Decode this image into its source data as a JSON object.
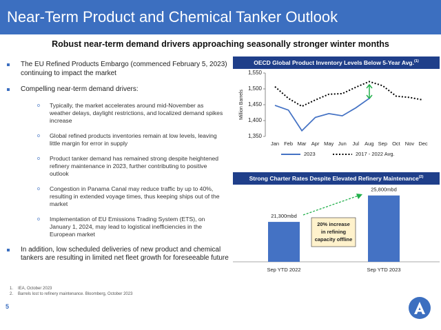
{
  "header": {
    "title": "Near-Term Product and Chemical Tanker Outlook"
  },
  "subtitle": "Robust near-term demand drivers approaching seasonally stronger winter months",
  "bullets": [
    {
      "text": "The EU Refined Products Embargo (commenced February 5, 2023) continuing to impact the market",
      "sub": []
    },
    {
      "text": "Compelling near-term demand drivers:",
      "sub": [
        "Typically, the market accelerates around mid-November as weather delays, daylight restrictions, and localized demand spikes increase",
        "Global refined products inventories remain at low levels, leaving little margin for error in supply",
        "Product tanker demand has remained strong despite heightened refinery maintenance in 2023, further contributing to positive outlook",
        "Congestion in Panama Canal may reduce traffic by up to 40%, resulting in extended voyage times, thus keeping ships out of the market",
        "Implementation of EU Emissions Trading System (ETS), on January 1, 2024, may lead to logistical inefficiencies in the European market"
      ]
    },
    {
      "text": "In addition, low scheduled deliveries of new product and chemical tankers are resulting in limited net fleet growth for foreseeable future",
      "sub": []
    }
  ],
  "footnotes": [
    {
      "number": "1.",
      "text": "IEA, October 2023"
    },
    {
      "number": "2.",
      "text": "Barrels lost to refinery maintenance. Bloomberg, October 2023"
    }
  ],
  "page_number": "5",
  "chart_data": [
    {
      "type": "line",
      "title": "OECD Global Product Inventory Levels Below 5-Year Avg.",
      "title_note": "(1)",
      "categories": [
        "Jan",
        "Feb",
        "Mar",
        "Apr",
        "May",
        "Jun",
        "Jul",
        "Aug",
        "Sep",
        "Oct",
        "Nov",
        "Dec"
      ],
      "ylabel": "Million Barrels",
      "series": [
        {
          "name": "2023",
          "color": "#4472c4",
          "style": "solid",
          "values": [
            1448,
            1433,
            1368,
            1410,
            1422,
            1415,
            1440,
            1470,
            null,
            null,
            null,
            null
          ]
        },
        {
          "name": "2017 - 2022 Avg.",
          "color": "#000000",
          "style": "dotted",
          "values": [
            1507,
            1470,
            1445,
            1465,
            1483,
            1485,
            1505,
            1523,
            1510,
            1477,
            1473,
            1465
          ]
        }
      ],
      "ylim": [
        1350,
        1550
      ],
      "yticks": [
        {
          "value": 1350,
          "label": "1,350"
        },
        {
          "value": 1400,
          "label": "1,400"
        },
        {
          "value": 1450,
          "label": "1,450"
        },
        {
          "value": 1500,
          "label": "1,500"
        },
        {
          "value": 1550,
          "label": "1,550"
        }
      ]
    },
    {
      "type": "bar",
      "title": "Strong Charter Rates Despite Elevated Refinery Maintenance",
      "title_note": "(2)",
      "categories": [
        "Sep YTD 2022",
        "Sep YTD 2023"
      ],
      "values": [
        21300,
        25800
      ],
      "value_labels": [
        "21,300mbd",
        "25,800mbd"
      ],
      "color": "#4472c4",
      "ylim": [
        14500,
        28000
      ],
      "annotation": [
        "20% increase",
        "in refining",
        "capacity offline"
      ]
    }
  ]
}
